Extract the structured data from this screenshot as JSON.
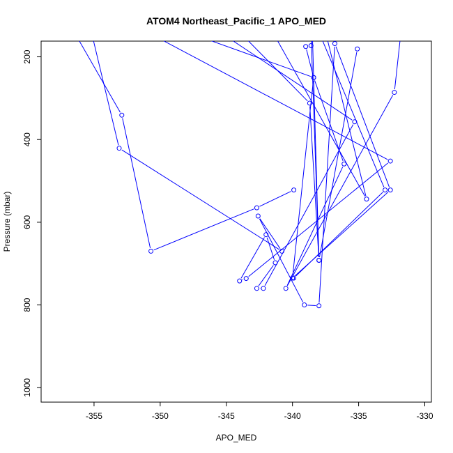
{
  "chart_data": {
    "type": "line",
    "title": "ATOM4 Northeast_Pacific_1 APO_MED",
    "xlabel": "APO_MED",
    "ylabel": "Pressure (mbar)",
    "xlim": [
      -359.0,
      -329.5
    ],
    "ylim": [
      1035,
      162
    ],
    "y_reversed": true,
    "grid": false,
    "legend": "none",
    "line_color": "#0000ff",
    "marker": "open-circle",
    "x_ticks": [
      -355,
      -350,
      -345,
      -340,
      -335,
      -330
    ],
    "x_tick_labels": [
      "-355",
      "-350",
      "-345",
      "-340",
      "-335",
      "-330"
    ],
    "y_ticks": [
      200,
      400,
      600,
      800,
      1000
    ],
    "y_tick_labels": [
      "200",
      "400",
      "600",
      "800",
      "1000"
    ],
    "series": [
      {
        "points": [
          {
            "x": -356.5,
            "y": 140
          },
          {
            "x": -352.9,
            "y": 341
          },
          {
            "x": -350.7,
            "y": 670
          },
          {
            "x": -342.7,
            "y": 565
          },
          {
            "x": -339.9,
            "y": 522
          }
        ]
      },
      {
        "points": [
          {
            "x": -355.2,
            "y": 140
          },
          {
            "x": -353.1,
            "y": 421
          },
          {
            "x": -340.8,
            "y": 670
          },
          {
            "x": -342.6,
            "y": 585
          },
          {
            "x": -339.1,
            "y": 800
          },
          {
            "x": -338.0,
            "y": 802
          },
          {
            "x": -336.8,
            "y": 168
          },
          {
            "x": -332.6,
            "y": 522
          },
          {
            "x": -340.0,
            "y": 735
          },
          {
            "x": -338.4,
            "y": 250
          },
          {
            "x": -339.0,
            "y": 175
          }
        ]
      },
      {
        "points": [
          {
            "x": -351.0,
            "y": 140
          },
          {
            "x": -332.6,
            "y": 452
          },
          {
            "x": -343.5,
            "y": 736
          },
          {
            "x": -344.0,
            "y": 742
          },
          {
            "x": -342.0,
            "y": 630
          },
          {
            "x": -341.3,
            "y": 698
          },
          {
            "x": -342.7,
            "y": 760
          },
          {
            "x": -342.2,
            "y": 760
          },
          {
            "x": -335.3,
            "y": 357
          },
          {
            "x": -345.5,
            "y": 140
          }
        ]
      },
      {
        "points": [
          {
            "x": -348.0,
            "y": 140
          },
          {
            "x": -338.4,
            "y": 250
          },
          {
            "x": -336.1,
            "y": 459
          },
          {
            "x": -340.5,
            "y": 760
          },
          {
            "x": -332.3,
            "y": 286
          },
          {
            "x": -331.8,
            "y": 140
          }
        ]
      },
      {
        "points": [
          {
            "x": -344.0,
            "y": 140
          },
          {
            "x": -338.7,
            "y": 312
          },
          {
            "x": -338.0,
            "y": 692
          },
          {
            "x": -338.5,
            "y": 140
          }
        ]
      },
      {
        "points": [
          {
            "x": -341.5,
            "y": 140
          },
          {
            "x": -334.4,
            "y": 544
          },
          {
            "x": -337.5,
            "y": 140
          }
        ]
      },
      {
        "points": [
          {
            "x": -339.9,
            "y": 735
          },
          {
            "x": -333.0,
            "y": 522
          },
          {
            "x": -338.0,
            "y": 140
          }
        ]
      },
      {
        "points": [
          {
            "x": -338.6,
            "y": 173
          },
          {
            "x": -338.5,
            "y": 140
          }
        ]
      },
      {
        "points": [
          {
            "x": -335.1,
            "y": 181
          },
          {
            "x": -338.0,
            "y": 692
          },
          {
            "x": -338.6,
            "y": 140
          }
        ]
      }
    ]
  }
}
